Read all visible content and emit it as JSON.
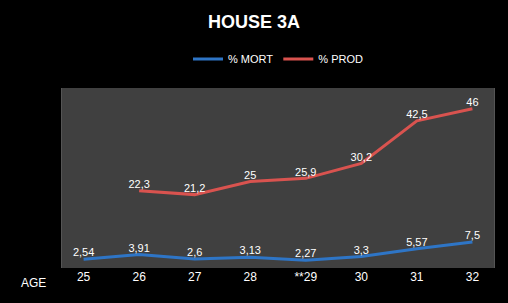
{
  "chart_data": {
    "type": "line",
    "title": "HOUSE 3A",
    "x_label": "AGE",
    "categories": [
      "25",
      "26",
      "27",
      "28",
      "**29",
      "30",
      "31",
      "32"
    ],
    "series": [
      {
        "name": "% MORT",
        "color": "#2e75c6",
        "values": [
          2.54,
          3.91,
          2.6,
          3.13,
          2.27,
          3.3,
          5.57,
          7.5
        ],
        "value_labels": [
          "2,54",
          "3,91",
          "2,6",
          "3,13",
          "2,27",
          "3,3",
          "5,57",
          "7,5"
        ]
      },
      {
        "name": "% PROD",
        "color": "#d9534f",
        "values": [
          null,
          22.3,
          21.2,
          25,
          25.9,
          30.2,
          42.5,
          46
        ],
        "value_labels": [
          null,
          "22,3",
          "21,2",
          "25",
          "25,9",
          "30,2",
          "42,5",
          "46"
        ]
      }
    ],
    "ylim": [
      0,
      52
    ],
    "grid": false,
    "legend": "top",
    "data_labels": true,
    "tick_labels": "x"
  }
}
